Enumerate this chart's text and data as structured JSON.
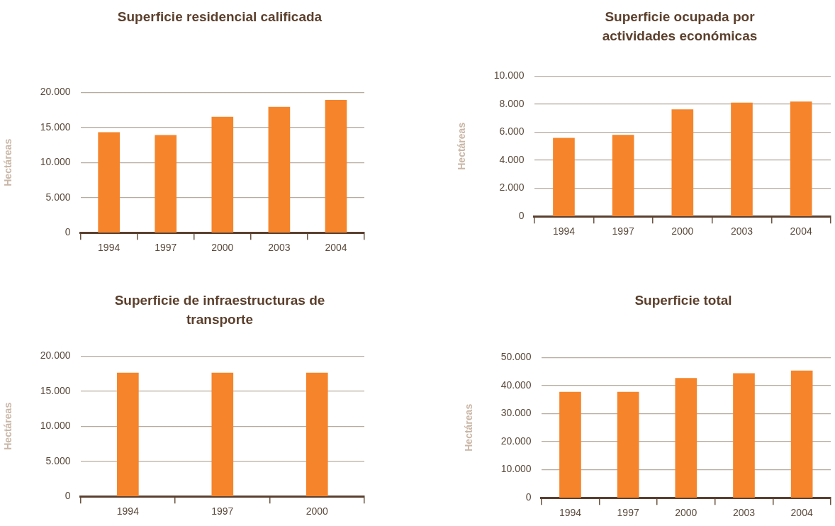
{
  "chart_data": [
    {
      "type": "bar",
      "title": "Superficie residencial calificada",
      "ylabel": "Hectáreas",
      "categories": [
        "1994",
        "1997",
        "2000",
        "2003",
        "2004"
      ],
      "values": [
        14300,
        13900,
        16500,
        17900,
        18900
      ],
      "color": "#f5842b",
      "ylim": [
        0,
        20000
      ],
      "yticks": [
        {
          "value": 0,
          "label": "0"
        },
        {
          "value": 5000,
          "label": "5.000"
        },
        {
          "value": 10000,
          "label": "10.000"
        },
        {
          "value": 15000,
          "label": "15.000"
        },
        {
          "value": 20000,
          "label": "20.000"
        }
      ],
      "grid": "y",
      "legend": false
    },
    {
      "type": "bar",
      "title": "Superficie ocupada por actividades económicas",
      "ylabel": "Hectáreas",
      "categories": [
        "1994",
        "1997",
        "2000",
        "2003",
        "2004"
      ],
      "values": [
        5580,
        5790,
        7620,
        8090,
        8170
      ],
      "color": "#f5842b",
      "ylim": [
        0,
        10000
      ],
      "yticks": [
        {
          "value": 0,
          "label": "0"
        },
        {
          "value": 2000,
          "label": "2.000"
        },
        {
          "value": 4000,
          "label": "4.000"
        },
        {
          "value": 6000,
          "label": "6.000"
        },
        {
          "value": 8000,
          "label": "8.000"
        },
        {
          "value": 10000,
          "label": "10.000"
        }
      ],
      "grid": "y",
      "legend": false
    },
    {
      "type": "bar",
      "title": "Superficie de infraestructuras de transporte",
      "ylabel": "Hectáreas",
      "categories": [
        "1994",
        "1997",
        "2000"
      ],
      "values": [
        17600,
        17600,
        17600
      ],
      "color": "#f5842b",
      "ylim": [
        0,
        20000
      ],
      "yticks": [
        {
          "value": 0,
          "label": "0"
        },
        {
          "value": 5000,
          "label": "5.000"
        },
        {
          "value": 10000,
          "label": "10.000"
        },
        {
          "value": 15000,
          "label": "15.000"
        },
        {
          "value": 20000,
          "label": "20.000"
        }
      ],
      "grid": "y",
      "legend": false
    },
    {
      "type": "bar",
      "title": "Superficie total",
      "ylabel": "Hectáreas",
      "categories": [
        "1994",
        "1997",
        "2000",
        "2003",
        "2004"
      ],
      "values": [
        37700,
        37700,
        42600,
        44300,
        45300
      ],
      "color": "#f5842b",
      "ylim": [
        0,
        50000
      ],
      "yticks": [
        {
          "value": 0,
          "label": "0"
        },
        {
          "value": 10000,
          "label": "10.000"
        },
        {
          "value": 20000,
          "label": "20.000"
        },
        {
          "value": 30000,
          "label": "30.000"
        },
        {
          "value": 40000,
          "label": "40.000"
        },
        {
          "value": 50000,
          "label": "50.000"
        }
      ],
      "grid": "y",
      "legend": false
    }
  ]
}
